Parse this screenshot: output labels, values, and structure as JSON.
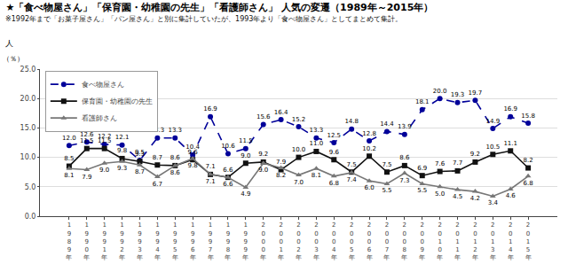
{
  "chart_data": {
    "type": "line",
    "title": "★「食べ物屋さん」「保育園・幼稚園の先生」「看護師さん」 人気の変遷（1989年～2015年）",
    "subtitle": "※1992年まで「お菓子屋さん」「パン屋さん」と別に集計していたが、1993年より「食べ物屋さん」としてまとめて集計。",
    "y_label": "人",
    "y_unit_label": "（％）",
    "categories": [
      "1989年",
      "1990年",
      "1991年",
      "1992年",
      "1993年",
      "1994年",
      "1995年",
      "1996年",
      "1997年",
      "1998年",
      "1999年",
      "2000年",
      "2001年",
      "2002年",
      "2003年",
      "2004年",
      "2005年",
      "2006年",
      "2007年",
      "2008年",
      "2009年",
      "2010年",
      "2011年",
      "2012年",
      "2013年",
      "2014年",
      "2015年"
    ],
    "series": [
      {
        "name": "食べ物屋さん",
        "color": "#000099",
        "marker": "circle",
        "line_style": "dash",
        "values": [
          12.0,
          12.6,
          12.2,
          12.1,
          9.5,
          13.3,
          13.3,
          10.4,
          16.9,
          10.6,
          11.5,
          15.6,
          16.4,
          15.2,
          13.3,
          12.5,
          14.8,
          12.8,
          14.4,
          13.9,
          18.1,
          20.0,
          19.3,
          19.7,
          14.9,
          16.9,
          15.8
        ],
        "value_labels": [
          "12.0",
          "12.6",
          "12.2",
          "12.1",
          "9.5",
          "13.3",
          "13.3",
          "10.4",
          "16.9",
          "10.6",
          "11.5",
          "15.6",
          "16.4",
          "15.2",
          "13.3",
          "12.5",
          "14.8",
          "12.8",
          "14.4",
          "13.9",
          "18.1",
          "20.0",
          "19.3",
          "19.7",
          "14.9",
          "16.9",
          "15.8"
        ]
      },
      {
        "name": "保育園・幼稚園の先生",
        "color": "#111111",
        "marker": "square",
        "line_style": "solid",
        "values": [
          8.5,
          11.5,
          11.5,
          9.8,
          9.3,
          8.7,
          8.6,
          9.6,
          7.1,
          6.6,
          9.0,
          9.2,
          7.9,
          10.0,
          11.0,
          9.6,
          7.5,
          10.2,
          7.5,
          8.6,
          6.9,
          7.6,
          7.7,
          9.2,
          10.5,
          11.1,
          8.2
        ],
        "value_labels": [
          "8.5",
          "11.5",
          "11.5",
          "9.8",
          "9.3",
          "8.7",
          "8.6",
          "9.6",
          "7.1",
          "6.6",
          "9.0",
          "9.2",
          "7.9",
          "10.0",
          "11.0",
          "9.6",
          "7.5",
          "10.2",
          "7.5",
          "8.6",
          "6.9",
          "7.6",
          "7.7",
          "9.2",
          "10.5",
          "11.1",
          "8.2"
        ]
      },
      {
        "name": "看護師さん",
        "color": "#777777",
        "marker": "triangle-up",
        "line_style": "solid",
        "values": [
          8.1,
          7.9,
          9.0,
          9.3,
          8.7,
          6.7,
          8.6,
          9.8,
          7.1,
          6.6,
          4.9,
          9.0,
          8.2,
          7.0,
          8.1,
          6.8,
          7.4,
          6.0,
          5.5,
          7.3,
          5.5,
          5.0,
          4.5,
          4.2,
          3.4,
          4.6,
          6.8
        ],
        "value_labels": [
          "8.1",
          "7.9",
          "9.0",
          "9.3",
          "8.7",
          "6.7",
          "8.6",
          "9.8",
          "7.1",
          "6.6",
          "4.9",
          "9.0",
          "8.2",
          "7.0",
          "8.1",
          "6.8",
          "7.4",
          "6.0",
          "5.5",
          "7.3",
          "5.5",
          "5.0",
          "4.5",
          "4.2",
          "3.4",
          "4.6",
          "6.8"
        ]
      }
    ],
    "ylim": [
      0.0,
      25.0
    ],
    "yticks": [
      {
        "value": 0,
        "label": "0.0"
      },
      {
        "value": 5,
        "label": "5.0"
      },
      {
        "value": 10,
        "label": "10.0"
      },
      {
        "value": 15,
        "label": "15.0"
      },
      {
        "value": 20,
        "label": "20.0"
      },
      {
        "value": 25,
        "label": "25.0"
      }
    ],
    "grid": true,
    "legend": "upper left",
    "data_labels": true
  }
}
